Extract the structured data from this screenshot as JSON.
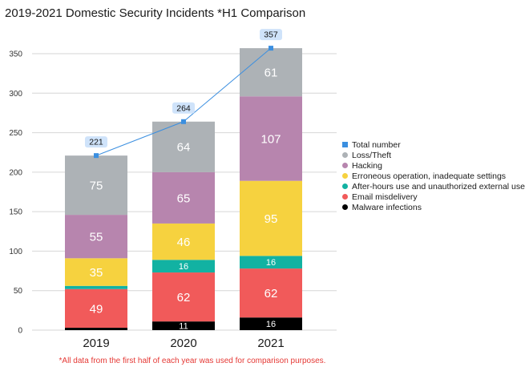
{
  "chart_data": {
    "type": "bar",
    "stacked": true,
    "title": "2019-2021 Domestic Security Incidents *H1 Comparison",
    "footnote": "*All data from the first half of each year was used for comparison purposes.",
    "categories": [
      "2019",
      "2020",
      "2021"
    ],
    "ylim": [
      0,
      370
    ],
    "yticks": [
      0,
      50,
      100,
      150,
      200,
      250,
      300,
      350
    ],
    "grid": true,
    "legend_position": "right",
    "series": [
      {
        "name": "Malware infections",
        "color": "#000000",
        "values": [
          3,
          11,
          16
        ],
        "labels": [
          "",
          "11",
          "16"
        ]
      },
      {
        "name": "Email misdelivery",
        "color": "#f15a5a",
        "values": [
          49,
          62,
          62
        ],
        "labels": [
          "49",
          "62",
          "62"
        ]
      },
      {
        "name": "After-hours use and unauthorized external use",
        "color": "#12b2a2",
        "values": [
          4,
          16,
          16
        ],
        "labels": [
          "",
          "16",
          "16"
        ]
      },
      {
        "name": "Erroneous operation, inadequate settings",
        "color": "#f6d23f",
        "values": [
          35,
          46,
          95
        ],
        "labels": [
          "35",
          "46",
          "95"
        ]
      },
      {
        "name": "Hacking",
        "color": "#b785ae",
        "values": [
          55,
          65,
          107
        ],
        "labels": [
          "55",
          "65",
          "107"
        ]
      },
      {
        "name": "Loss/Theft",
        "color": "#adb2b6",
        "values": [
          75,
          64,
          61
        ],
        "labels": [
          "75",
          "64",
          "61"
        ]
      }
    ],
    "total": {
      "name": "Total number",
      "color": "#3b8fe0",
      "values": [
        221,
        264,
        357
      ],
      "labels": [
        "221",
        "264",
        "357"
      ]
    },
    "legend_order": [
      "Total number",
      "Loss/Theft",
      "Hacking",
      "Erroneous operation, inadequate settings",
      "After-hours use and unauthorized external use",
      "Email misdelivery",
      "Malware infections"
    ]
  }
}
